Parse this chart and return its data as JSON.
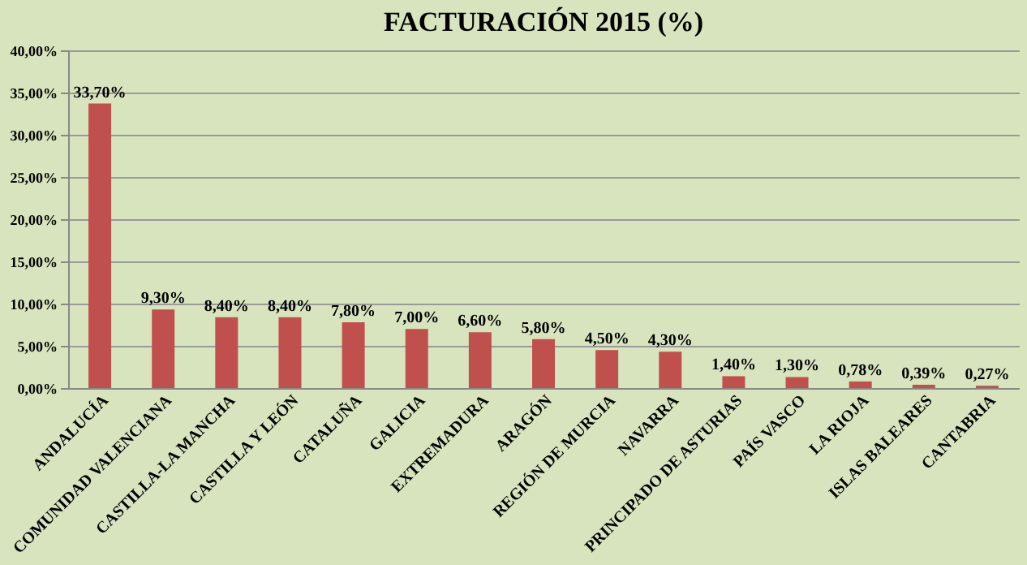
{
  "chart_data": {
    "type": "bar",
    "title": "FACTURACIÓN 2015 (%)",
    "categories": [
      "ANDALUCÍA",
      "COMUNIDAD VALENCIANA",
      "CASTILLA-LA MANCHA",
      "CASTILLA Y LEÓN",
      "CATALUÑA",
      "GALICIA",
      "EXTREMADURA",
      "ARAGÓN",
      "REGIÓN DE MURCIA",
      "NAVARRA",
      "PRINCIPADO DE ASTURIAS",
      "PAÍS VASCO",
      "LA RIOJA",
      "ISLAS BALEARES",
      "CANTABRIA"
    ],
    "values": [
      33.7,
      9.3,
      8.4,
      8.4,
      7.8,
      7.0,
      6.6,
      5.8,
      4.5,
      4.3,
      1.4,
      1.3,
      0.78,
      0.39,
      0.27
    ],
    "value_labels": [
      "33,70%",
      "9,30%",
      "8,40%",
      "8,40%",
      "7,80%",
      "7,00%",
      "6,60%",
      "5,80%",
      "4,50%",
      "4,30%",
      "1,40%",
      "1,30%",
      "0,78%",
      "0,39%",
      "0,27%"
    ],
    "color": "#c0504d",
    "ylim": [
      0,
      40
    ],
    "yticks": [
      {
        "value": 0,
        "label": "0,00%"
      },
      {
        "value": 5,
        "label": "5,00%"
      },
      {
        "value": 10,
        "label": "10,00%"
      },
      {
        "value": 15,
        "label": "15,00%"
      },
      {
        "value": 20,
        "label": "20,00%"
      },
      {
        "value": 25,
        "label": "25,00%"
      },
      {
        "value": 30,
        "label": "30,00%"
      },
      {
        "value": 35,
        "label": "35,00%"
      },
      {
        "value": 40,
        "label": "40,00%"
      }
    ],
    "grid": "y"
  }
}
